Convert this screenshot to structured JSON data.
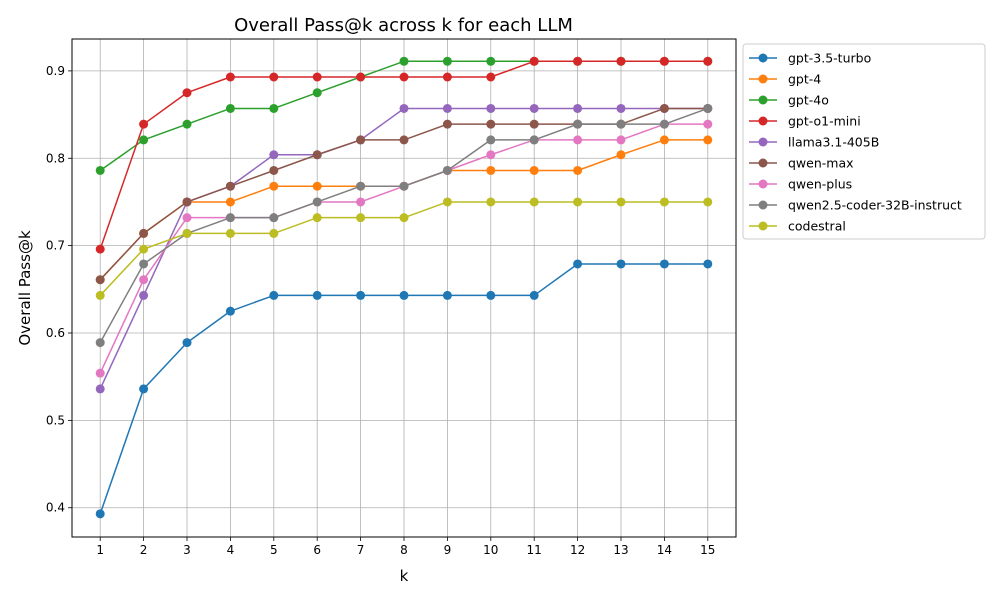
{
  "chart_data": {
    "type": "line",
    "title": "Overall Pass@k across k for each LLM",
    "xlabel": "k",
    "ylabel": "Overall Pass@k",
    "x": [
      1,
      2,
      3,
      4,
      5,
      6,
      7,
      8,
      9,
      10,
      11,
      12,
      13,
      14,
      15
    ],
    "xlim": [
      0.35,
      15.65
    ],
    "ylim": [
      0.3665,
      0.9365
    ],
    "yticks": [
      0.4,
      0.5,
      0.6,
      0.7,
      0.8,
      0.9
    ],
    "ytick_labels": [
      "0.4",
      "0.5",
      "0.6",
      "0.7",
      "0.8",
      "0.9"
    ],
    "xtick_labels": [
      "1",
      "2",
      "3",
      "4",
      "5",
      "6",
      "7",
      "8",
      "9",
      "10",
      "11",
      "12",
      "13",
      "14",
      "15"
    ],
    "grid": true,
    "legend_position": "outside-top-right",
    "series": [
      {
        "name": "gpt-3.5-turbo",
        "color": "#1f77b4",
        "values": [
          0.393,
          0.536,
          0.589,
          0.625,
          0.643,
          0.643,
          0.643,
          0.643,
          0.643,
          0.643,
          0.643,
          0.679,
          0.679,
          0.679,
          0.679
        ]
      },
      {
        "name": "gpt-4",
        "color": "#ff7f0e",
        "values": [
          0.661,
          0.714,
          0.75,
          0.75,
          0.768,
          0.768,
          0.768,
          0.768,
          0.786,
          0.786,
          0.786,
          0.786,
          0.804,
          0.821,
          0.821
        ]
      },
      {
        "name": "gpt-4o",
        "color": "#2ca02c",
        "values": [
          0.786,
          0.821,
          0.839,
          0.857,
          0.857,
          0.875,
          0.893,
          0.911,
          0.911,
          0.911,
          0.911,
          0.911,
          0.911,
          0.911,
          0.911
        ]
      },
      {
        "name": "gpt-o1-mini",
        "color": "#d62728",
        "values": [
          0.696,
          0.839,
          0.875,
          0.893,
          0.893,
          0.893,
          0.893,
          0.893,
          0.893,
          0.893,
          0.911,
          0.911,
          0.911,
          0.911,
          0.911
        ]
      },
      {
        "name": "llama3.1-405B",
        "color": "#9467bd",
        "values": [
          0.536,
          0.643,
          0.75,
          0.768,
          0.804,
          0.804,
          0.821,
          0.857,
          0.857,
          0.857,
          0.857,
          0.857,
          0.857,
          0.857,
          0.857
        ]
      },
      {
        "name": "qwen-max",
        "color": "#8c564b",
        "values": [
          0.661,
          0.714,
          0.75,
          0.768,
          0.786,
          0.804,
          0.821,
          0.821,
          0.839,
          0.839,
          0.839,
          0.839,
          0.839,
          0.857,
          0.857
        ]
      },
      {
        "name": "qwen-plus",
        "color": "#e377c2",
        "values": [
          0.554,
          0.661,
          0.732,
          0.732,
          0.732,
          0.75,
          0.75,
          0.768,
          0.786,
          0.804,
          0.821,
          0.821,
          0.821,
          0.839,
          0.839
        ]
      },
      {
        "name": "qwen2.5-coder-32B-instruct",
        "color": "#7f7f7f",
        "values": [
          0.589,
          0.679,
          0.714,
          0.732,
          0.732,
          0.75,
          0.768,
          0.768,
          0.786,
          0.821,
          0.821,
          0.839,
          0.839,
          0.839,
          0.857
        ]
      },
      {
        "name": "codestral",
        "color": "#bcbd22",
        "values": [
          0.643,
          0.696,
          0.714,
          0.714,
          0.714,
          0.732,
          0.732,
          0.732,
          0.75,
          0.75,
          0.75,
          0.75,
          0.75,
          0.75,
          0.75
        ]
      }
    ]
  }
}
